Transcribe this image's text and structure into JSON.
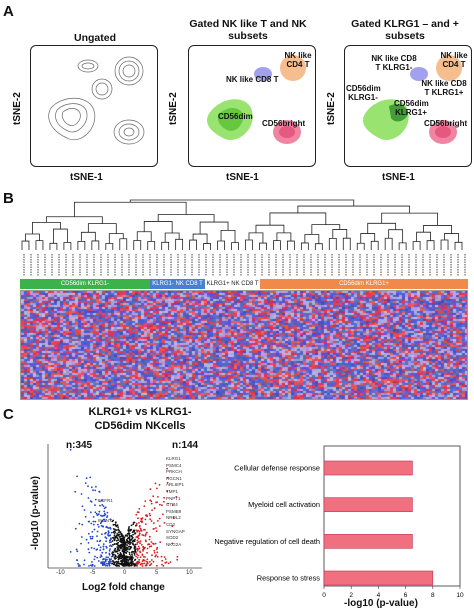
{
  "panelA": {
    "letter": "A",
    "titles": [
      "Ungated",
      "Gated NK like T and NK subsets",
      "Gated KLRG1 – and + subsets"
    ],
    "xlabel": "tSNE-1",
    "ylabel": "tSNE-2",
    "plot2_labels": {
      "nk_cd4": "NK like CD4 T",
      "nk_cd8": "NK like CD8 T",
      "cd56dim": "CD56dim",
      "cd56bright": "CD56bright"
    },
    "plot3_labels": {
      "nk_cd8_klrg1neg": "NK like CD8 T KLRG1-",
      "nk_cd4": "NK like CD4 T",
      "nk_cd8_klrg1pos": "NK like CD8 T KLRG1+",
      "cd56dim_klrg1neg": "CD56dim KLRG1-",
      "cd56dim_klrg1pos": "CD56dim KLRG1+",
      "cd56bright": "CD56bright"
    }
  },
  "panelB": {
    "letter": "B",
    "groups": [
      {
        "label": "CD56dim KLRG1-",
        "color": "#3bb34a"
      },
      {
        "label": "KLRG1- NK CD8 T",
        "color": "#4a7fd0"
      },
      {
        "label": "KLRG1+ NK CD8 T",
        "color": "#ffffff"
      },
      {
        "label": "CD56dim KLRG1+",
        "color": "#f0894a"
      }
    ]
  },
  "panelC": {
    "letter": "C",
    "volcano_title_1": "KLRG1+ vs KLRG1-",
    "volcano_title_2": "CD56dim NKcells",
    "count_left": "n:345",
    "count_right": "n:144",
    "xlabel": "Log2 fold change",
    "ylabel": "-log10 (p-value)",
    "xticks": [
      "-10",
      "-5",
      "0",
      "5",
      "10"
    ],
    "genes_right": [
      "KLRG1",
      "PSMC4",
      "PRKCH",
      "RGCN1",
      "ARL6IP1",
      "TMP1",
      "PNPT1",
      "CTR4",
      "PSMB9",
      "NRDL2",
      "CD2",
      "SYNGAP",
      "SOD2",
      "NKG2A"
    ],
    "genes_left": [
      "FGFR1",
      "INCNY"
    ]
  },
  "chart_data": {
    "type": "bar",
    "categories": [
      "Cellular defense response",
      "Myeloid cell activation",
      "Negative regulation of cell death",
      "Response to stress"
    ],
    "values": [
      6.5,
      6.5,
      6.5,
      8.0
    ],
    "xlabel": "-log10 (p-value)",
    "xticks": [
      "0",
      "2",
      "4",
      "6",
      "8",
      "10"
    ],
    "xlim": [
      0,
      10
    ],
    "bar_color": "#f07080"
  }
}
